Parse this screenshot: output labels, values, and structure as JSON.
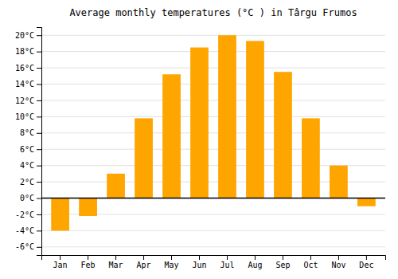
{
  "chart_data": {
    "type": "bar",
    "title": "Average monthly temperatures (°C ) in Târgu Frumos",
    "categories": [
      "Jan",
      "Feb",
      "Mar",
      "Apr",
      "May",
      "Jun",
      "Jul",
      "Aug",
      "Sep",
      "Oct",
      "Nov",
      "Dec"
    ],
    "values": [
      -4.0,
      -2.2,
      3.0,
      9.8,
      15.2,
      18.5,
      20.0,
      19.3,
      15.5,
      9.8,
      4.0,
      -1.0
    ],
    "color": "#FFA500",
    "ylim": [
      -7,
      21
    ],
    "yticks": [
      {
        "value": -6,
        "label": "-6°C"
      },
      {
        "value": -4,
        "label": "-4°C"
      },
      {
        "value": -2,
        "label": "-2°C"
      },
      {
        "value": 0,
        "label": "0°C"
      },
      {
        "value": 2,
        "label": "2°C"
      },
      {
        "value": 4,
        "label": "4°C"
      },
      {
        "value": 6,
        "label": "6°C"
      },
      {
        "value": 8,
        "label": "8°C"
      },
      {
        "value": 10,
        "label": "10°C"
      },
      {
        "value": 12,
        "label": "12°C"
      },
      {
        "value": 14,
        "label": "14°C"
      },
      {
        "value": 16,
        "label": "16°C"
      },
      {
        "value": 18,
        "label": "18°C"
      },
      {
        "value": 20,
        "label": "20°C"
      }
    ],
    "grid": true
  }
}
